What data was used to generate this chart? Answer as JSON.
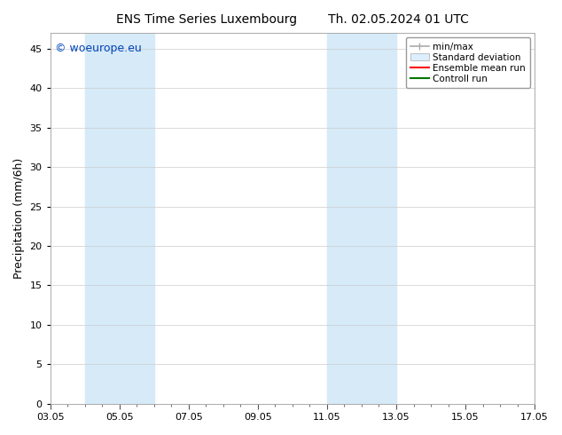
{
  "title_left": "ENS Time Series Luxembourg",
  "title_right": "Th. 02.05.2024 01 UTC",
  "ylabel": "Precipitation (mm/6h)",
  "watermark": "© woeurope.eu",
  "watermark_color": "#0044bb",
  "ylim": [
    0,
    47
  ],
  "yticks": [
    0,
    5,
    10,
    15,
    20,
    25,
    30,
    35,
    40,
    45
  ],
  "xtick_labels": [
    "03.05",
    "05.05",
    "07.05",
    "09.05",
    "11.05",
    "13.05",
    "15.05",
    "17.05"
  ],
  "xtick_positions": [
    0,
    2,
    4,
    6,
    8,
    10,
    12,
    14
  ],
  "x_total": 14,
  "shaded_bands": [
    {
      "x_start": 1.0,
      "x_end": 2.0,
      "color": "#d6eaf8"
    },
    {
      "x_start": 2.0,
      "x_end": 3.0,
      "color": "#d6eaf8"
    },
    {
      "x_start": 8.0,
      "x_end": 9.0,
      "color": "#d6eaf8"
    },
    {
      "x_start": 9.0,
      "x_end": 10.0,
      "color": "#d6eaf8"
    }
  ],
  "legend_items": [
    {
      "label": "min/max",
      "color": "#aaaaaa",
      "linewidth": 1.2,
      "type": "line_tick"
    },
    {
      "label": "Standard deviation",
      "color": "#ddeeff",
      "type": "patch",
      "edgecolor": "#aaaaaa"
    },
    {
      "label": "Ensemble mean run",
      "color": "#ff0000",
      "linewidth": 1.5,
      "type": "line"
    },
    {
      "label": "Controll run",
      "color": "#007700",
      "linewidth": 1.5,
      "type": "line"
    }
  ],
  "background_color": "#ffffff",
  "plot_bg_color": "#ffffff",
  "grid_color": "#cccccc",
  "spine_color": "#aaaaaa",
  "font_size": 8,
  "tick_font_size": 8,
  "ylabel_font_size": 9,
  "title_font_size": 10,
  "watermark_font_size": 9
}
